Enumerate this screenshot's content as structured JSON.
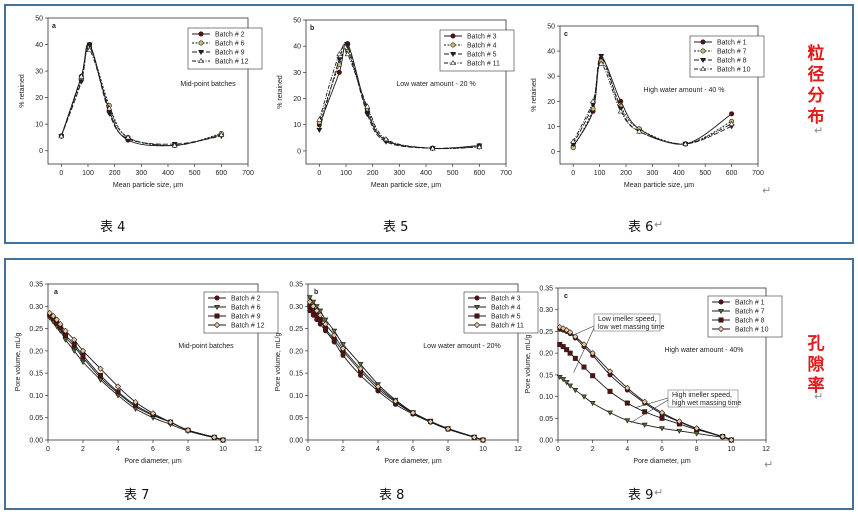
{
  "section_labels": {
    "top": [
      "粒",
      "径",
      "分",
      "布"
    ],
    "bottom": [
      "孔",
      "隙",
      "率"
    ]
  },
  "return_mark": "↵",
  "colors": {
    "frame": "#44729d",
    "side_label": "#e01b1b"
  },
  "captions": [
    "表 4",
    "表 5",
    "表 6",
    "表 7",
    "表 8",
    "表 9"
  ],
  "chart_data": [
    {
      "type": "line",
      "panel": "a",
      "note": "Mid-point batches",
      "xlabel": "Mean particle size, µm",
      "ylabel": "% retained",
      "xlim": [
        -50,
        700
      ],
      "ylim": [
        -5,
        50
      ],
      "xticks": [
        0,
        100,
        200,
        300,
        400,
        500,
        600,
        700
      ],
      "yticks": [
        0,
        10,
        20,
        30,
        40,
        50
      ],
      "x": [
        0,
        75,
        106,
        180,
        250,
        425,
        600
      ],
      "series": [
        {
          "name": "Batch # 2",
          "marker": "circle",
          "fill": "#5a1010",
          "dash": "",
          "values": [
            5.5,
            28,
            40,
            15,
            4,
            2,
            6
          ]
        },
        {
          "name": "Batch # 6",
          "marker": "circle",
          "fill": "#c8c070",
          "dash": "2,1.5",
          "values": [
            5.5,
            27,
            39,
            17,
            5,
            2,
            6.5
          ]
        },
        {
          "name": "Batch # 9",
          "marker": "triangle-down",
          "fill": "#222222",
          "dash": "5,2",
          "values": [
            5.5,
            26,
            40,
            14,
            4.5,
            2.5,
            5.5
          ]
        },
        {
          "name": "Batch # 12",
          "marker": "triangle-up",
          "fill": "#ffffff",
          "dash": "4,1.5,1,1.5",
          "values": [
            5.5,
            28,
            38,
            16,
            5,
            2,
            6
          ]
        }
      ]
    },
    {
      "type": "line",
      "panel": "b",
      "note": "Low water amount - 20 %",
      "xlabel": "Mean particle size, µm",
      "ylabel": "% retained",
      "xlim": [
        -50,
        700
      ],
      "ylim": [
        -5,
        50
      ],
      "xticks": [
        0,
        100,
        200,
        300,
        400,
        500,
        600,
        700
      ],
      "yticks": [
        0,
        10,
        20,
        30,
        40,
        50
      ],
      "x": [
        0,
        75,
        106,
        180,
        250,
        425,
        600
      ],
      "series": [
        {
          "name": "Batch # 3",
          "marker": "circle",
          "fill": "#5a1010",
          "dash": "",
          "values": [
            10,
            30,
            41,
            15,
            4,
            1,
            2
          ]
        },
        {
          "name": "Batch # 4",
          "marker": "circle",
          "fill": "#c8c070",
          "dash": "2,1.5",
          "values": [
            11,
            33,
            38,
            16,
            4,
            1,
            1.5
          ]
        },
        {
          "name": "Batch # 5",
          "marker": "triangle-down",
          "fill": "#222222",
          "dash": "5,2",
          "values": [
            8,
            35,
            40,
            14,
            3.5,
            1,
            2
          ]
        },
        {
          "name": "Batch # 11",
          "marker": "triangle-up",
          "fill": "#ffffff",
          "dash": "4,1.5,1,1.5",
          "values": [
            12,
            37,
            37,
            17,
            4.5,
            1,
            1.5
          ]
        }
      ]
    },
    {
      "type": "line",
      "panel": "c",
      "note": "High water amount - 40 %",
      "xlabel": "Mean particle size, µm",
      "ylabel": "% retained",
      "xlim": [
        -50,
        700
      ],
      "ylim": [
        -5,
        50
      ],
      "xticks": [
        0,
        100,
        200,
        300,
        400,
        500,
        600,
        700
      ],
      "yticks": [
        0,
        10,
        20,
        30,
        40,
        50
      ],
      "x": [
        0,
        75,
        106,
        180,
        250,
        425,
        600
      ],
      "series": [
        {
          "name": "Batch # 1",
          "marker": "circle",
          "fill": "#5a1010",
          "dash": "",
          "values": [
            2,
            16,
            37,
            20,
            9,
            3,
            15
          ]
        },
        {
          "name": "Batch # 7",
          "marker": "circle",
          "fill": "#c8c070",
          "dash": "2,1.5",
          "values": [
            1.5,
            17,
            36,
            18,
            9,
            3,
            12
          ]
        },
        {
          "name": "Batch # 8",
          "marker": "triangle-down",
          "fill": "#222222",
          "dash": "5,2",
          "values": [
            3,
            19,
            38,
            17,
            8,
            3,
            10
          ]
        },
        {
          "name": "Batch # 10",
          "marker": "triangle-up",
          "fill": "#ffffff",
          "dash": "4,1.5,1,1.5",
          "values": [
            4,
            20,
            35,
            16,
            8,
            3,
            11
          ]
        }
      ]
    },
    {
      "type": "line",
      "panel": "a",
      "note": "Mid-point batches",
      "xlabel": "Pore diameter, µm",
      "ylabel": "Pore volume, mL/g",
      "xlim": [
        0,
        12
      ],
      "ylim": [
        0,
        0.35
      ],
      "xticks": [
        0,
        2,
        4,
        6,
        8,
        10,
        12
      ],
      "yticks": [
        0.0,
        0.05,
        0.1,
        0.15,
        0.2,
        0.25,
        0.3,
        0.35
      ],
      "yfmt": 2,
      "x": [
        0.1,
        0.3,
        0.5,
        0.7,
        1,
        1.5,
        2,
        3,
        4,
        5,
        6,
        7,
        8,
        9.5,
        10
      ],
      "series": [
        {
          "name": "Batch # 2",
          "marker": "circle",
          "fill": "#5a1010",
          "dash": "",
          "values": [
            0.28,
            0.27,
            0.26,
            0.25,
            0.23,
            0.21,
            0.185,
            0.14,
            0.105,
            0.075,
            0.055,
            0.04,
            0.022,
            0.006,
            0.0
          ]
        },
        {
          "name": "Batch # 6",
          "marker": "triangle-down",
          "fill": "#5a6a30",
          "dash": "",
          "values": [
            0.275,
            0.265,
            0.255,
            0.245,
            0.225,
            0.2,
            0.175,
            0.135,
            0.1,
            0.07,
            0.05,
            0.035,
            0.02,
            0.005,
            0.0
          ]
        },
        {
          "name": "Batch # 9",
          "marker": "square",
          "fill": "#5a1010",
          "dash": "",
          "values": [
            0.28,
            0.272,
            0.262,
            0.252,
            0.235,
            0.215,
            0.19,
            0.145,
            0.108,
            0.078,
            0.057,
            0.04,
            0.022,
            0.006,
            0.0
          ]
        },
        {
          "name": "Batch # 12",
          "marker": "diamond",
          "fill": "#f0c8a0",
          "dash": "",
          "values": [
            0.285,
            0.278,
            0.27,
            0.26,
            0.245,
            0.225,
            0.2,
            0.16,
            0.12,
            0.085,
            0.06,
            0.04,
            0.022,
            0.006,
            0.0
          ]
        }
      ]
    },
    {
      "type": "line",
      "panel": "b",
      "note": "Low water amount - 20%",
      "xlabel": "Pore diameter, µm",
      "ylabel": "Pore volume, mL/g",
      "xlim": [
        0,
        12
      ],
      "ylim": [
        0,
        0.35
      ],
      "xticks": [
        0,
        2,
        4,
        6,
        8,
        10,
        12
      ],
      "yticks": [
        0.0,
        0.05,
        0.1,
        0.15,
        0.2,
        0.25,
        0.3,
        0.35
      ],
      "yfmt": 2,
      "x": [
        0.1,
        0.3,
        0.5,
        0.7,
        1,
        1.5,
        2,
        3,
        4,
        5,
        6,
        7,
        8,
        9.5,
        10
      ],
      "series": [
        {
          "name": "Batch # 3",
          "marker": "circle",
          "fill": "#5a1010",
          "dash": "",
          "values": [
            0.29,
            0.28,
            0.27,
            0.26,
            0.245,
            0.22,
            0.19,
            0.145,
            0.11,
            0.08,
            0.058,
            0.04,
            0.024,
            0.006,
            0.0
          ]
        },
        {
          "name": "Batch # 4",
          "marker": "triangle-down",
          "fill": "#5a6a30",
          "dash": "",
          "values": [
            0.32,
            0.31,
            0.3,
            0.29,
            0.27,
            0.245,
            0.215,
            0.17,
            0.125,
            0.09,
            0.062,
            0.042,
            0.026,
            0.007,
            0.0
          ]
        },
        {
          "name": "Batch # 5",
          "marker": "square",
          "fill": "#5a1010",
          "dash": "",
          "values": [
            0.3,
            0.29,
            0.28,
            0.27,
            0.25,
            0.225,
            0.2,
            0.155,
            0.115,
            0.085,
            0.06,
            0.042,
            0.025,
            0.006,
            0.0
          ]
        },
        {
          "name": "Batch # 11",
          "marker": "diamond",
          "fill": "#f0c8a0",
          "dash": "",
          "values": [
            0.31,
            0.3,
            0.29,
            0.28,
            0.26,
            0.235,
            0.205,
            0.16,
            0.12,
            0.087,
            0.061,
            0.041,
            0.025,
            0.006,
            0.0
          ]
        }
      ]
    },
    {
      "type": "line",
      "panel": "c",
      "note": "High water amount - 40%",
      "annotations": [
        "Low imeller speed,",
        "low wet massing time",
        "High imeller speed,",
        "high wet massing time"
      ],
      "xlabel": "Pore diameter, µm",
      "ylabel": "Pore volume, mL/g",
      "xlim": [
        0,
        12
      ],
      "ylim": [
        0,
        0.35
      ],
      "xticks": [
        0,
        2,
        4,
        6,
        8,
        10,
        12
      ],
      "yticks": [
        0.0,
        0.05,
        0.1,
        0.15,
        0.2,
        0.25,
        0.3,
        0.35
      ],
      "yfmt": 2,
      "x": [
        0.1,
        0.3,
        0.5,
        0.7,
        1,
        1.5,
        2,
        3,
        4,
        5,
        6,
        7,
        8,
        9.5,
        10
      ],
      "series": [
        {
          "name": "Batch # 1",
          "marker": "circle",
          "fill": "#5a1010",
          "dash": "",
          "values": [
            0.255,
            0.253,
            0.25,
            0.245,
            0.235,
            0.215,
            0.195,
            0.15,
            0.115,
            0.085,
            0.06,
            0.042,
            0.026,
            0.007,
            0.0
          ]
        },
        {
          "name": "Batch # 7",
          "marker": "triangle-down",
          "fill": "#5a6a30",
          "dash": "",
          "values": [
            0.145,
            0.14,
            0.133,
            0.125,
            0.115,
            0.1,
            0.085,
            0.063,
            0.045,
            0.035,
            0.027,
            0.021,
            0.015,
            0.006,
            0.0
          ]
        },
        {
          "name": "Batch # 8",
          "marker": "square",
          "fill": "#5a1010",
          "dash": "",
          "values": [
            0.22,
            0.215,
            0.208,
            0.2,
            0.188,
            0.168,
            0.148,
            0.112,
            0.085,
            0.065,
            0.05,
            0.037,
            0.024,
            0.008,
            0.0
          ]
        },
        {
          "name": "Batch # 10",
          "marker": "diamond",
          "fill": "#f0c8a0",
          "dash": "",
          "values": [
            0.26,
            0.257,
            0.253,
            0.248,
            0.238,
            0.22,
            0.2,
            0.158,
            0.12,
            0.088,
            0.063,
            0.043,
            0.027,
            0.008,
            0.0
          ]
        }
      ]
    }
  ]
}
